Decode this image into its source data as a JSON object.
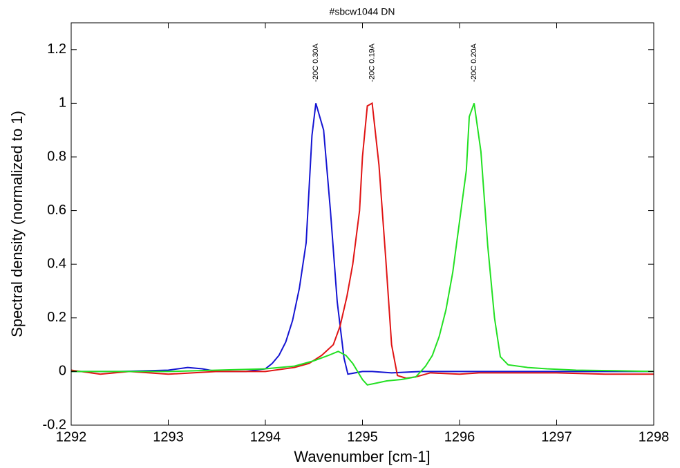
{
  "chart_data": {
    "type": "line",
    "title": "#sbcw1044 DN",
    "x_label": "Wavenumber [cm-1]",
    "y_label": "Spectral density (normalized to 1)",
    "xlim": [
      1292,
      1298
    ],
    "xticks": [
      1292,
      1293,
      1294,
      1295,
      1296,
      1297,
      1298
    ],
    "ylim": [
      -0.2,
      1.3
    ],
    "yticks": [
      -0.2,
      0,
      0.2,
      0.4,
      0.6,
      0.8,
      1,
      1.2
    ],
    "series": [
      {
        "name": "-20C 0.30A",
        "color": "#1414d2",
        "x": [
          1292,
          1292.5,
          1293,
          1293.2,
          1293.35,
          1293.5,
          1293.8,
          1294.0,
          1294.07,
          1294.14,
          1294.21,
          1294.28,
          1294.35,
          1294.42,
          1294.48,
          1294.52,
          1294.6,
          1294.67,
          1294.74,
          1294.81,
          1294.85,
          1295.0,
          1295.1,
          1295.3,
          1295.6,
          1296,
          1297,
          1298
        ],
        "values": [
          0,
          0,
          0.005,
          0.015,
          0.01,
          0,
          0,
          0.01,
          0.03,
          0.06,
          0.11,
          0.19,
          0.31,
          0.48,
          0.88,
          1.0,
          0.9,
          0.6,
          0.26,
          0.05,
          -0.01,
          0,
          0,
          -0.005,
          0,
          0,
          0,
          0
        ]
      },
      {
        "name": "-20C 0.19A",
        "color": "#e01414",
        "x": [
          1292,
          1292.3,
          1292.6,
          1293,
          1293.5,
          1294,
          1294.3,
          1294.45,
          1294.58,
          1294.7,
          1294.77,
          1294.84,
          1294.9,
          1294.97,
          1295.0,
          1295.05,
          1295.1,
          1295.17,
          1295.24,
          1295.3,
          1295.36,
          1295.45,
          1295.55,
          1295.7,
          1296,
          1296.2,
          1297,
          1297.5,
          1298
        ],
        "values": [
          0.005,
          -0.01,
          0,
          -0.01,
          0,
          0,
          0.015,
          0.03,
          0.06,
          0.1,
          0.17,
          0.28,
          0.4,
          0.6,
          0.8,
          0.99,
          1.0,
          0.77,
          0.42,
          0.1,
          -0.015,
          -0.025,
          -0.02,
          -0.005,
          -0.01,
          -0.005,
          -0.005,
          -0.01,
          -0.01
        ]
      },
      {
        "name": "-20C 0.20A",
        "color": "#22e022",
        "x": [
          1292,
          1293,
          1293.5,
          1294,
          1294.3,
          1294.5,
          1294.65,
          1294.75,
          1294.83,
          1294.9,
          1295.0,
          1295.05,
          1295.12,
          1295.25,
          1295.4,
          1295.55,
          1295.65,
          1295.72,
          1295.79,
          1295.86,
          1295.93,
          1296.0,
          1296.07,
          1296.1,
          1296.15,
          1296.22,
          1296.29,
          1296.36,
          1296.42,
          1296.5,
          1296.7,
          1296.9,
          1297.2,
          1297.6,
          1298
        ],
        "values": [
          0,
          0,
          0.005,
          0.01,
          0.02,
          0.04,
          0.06,
          0.075,
          0.06,
          0.03,
          -0.03,
          -0.05,
          -0.045,
          -0.035,
          -0.03,
          -0.02,
          0.02,
          0.06,
          0.13,
          0.23,
          0.37,
          0.56,
          0.75,
          0.95,
          1.0,
          0.82,
          0.47,
          0.2,
          0.055,
          0.025,
          0.015,
          0.01,
          0.005,
          0.003,
          0
        ]
      }
    ]
  }
}
